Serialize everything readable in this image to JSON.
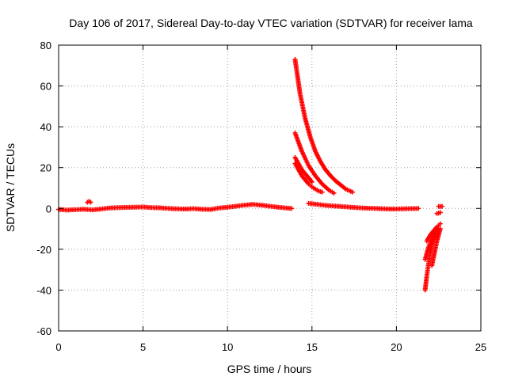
{
  "chart_data": {
    "type": "scatter",
    "title": "Day 106 of 2017, Sidereal Day-to-day VTEC variation (SDTVAR) for receiver lama",
    "xlabel": "GPS time / hours",
    "ylabel": "SDTVAR / TECUs",
    "xlim": [
      0,
      25
    ],
    "ylim": [
      -60,
      80
    ],
    "xticks": [
      "0",
      "5",
      "10",
      "15",
      "20",
      "25"
    ],
    "yticks": [
      "-60",
      "-40",
      "-20",
      "0",
      "20",
      "40",
      "60",
      "80"
    ],
    "grid": true,
    "marker": "plus",
    "color": "#ff0000",
    "series": [
      {
        "segments": [
          {
            "x": [
              0.0,
              0.5,
              1.0,
              1.5,
              2.0,
              2.5,
              3.0,
              3.5,
              4.0,
              4.5,
              5.0,
              5.5,
              6.0,
              6.5,
              7.0,
              7.5,
              8.0,
              8.5,
              9.0,
              9.5,
              10.0,
              10.5,
              11.0,
              11.5,
              12.0,
              12.5,
              13.0,
              13.5,
              13.8
            ],
            "y": [
              -0.5,
              -0.8,
              -0.6,
              -0.4,
              -0.7,
              -0.3,
              0.2,
              0.4,
              0.5,
              0.6,
              0.7,
              0.4,
              0.3,
              0.0,
              -0.2,
              -0.3,
              -0.1,
              -0.4,
              -0.5,
              0.2,
              0.6,
              1.1,
              1.6,
              2.0,
              1.6,
              1.1,
              0.6,
              0.2,
              0.0
            ]
          },
          {
            "x": [
              1.7,
              1.8,
              1.9
            ],
            "y": [
              3.0,
              3.5,
              3.0
            ]
          },
          {
            "x": [
              14.0,
              14.3,
              14.6,
              14.9,
              15.2,
              15.5,
              15.8,
              16.1,
              16.4,
              16.7,
              17.0,
              17.4
            ],
            "y": [
              73,
              56,
              44,
              35,
              28,
              23,
              19,
              16,
              13.5,
              11.5,
              9.5,
              8.0
            ]
          },
          {
            "x": [
              14.0,
              14.4,
              14.8,
              15.2,
              15.6,
              16.0,
              16.3
            ],
            "y": [
              37,
              28,
              21,
              16,
              12,
              9,
              7.5
            ]
          },
          {
            "x": [
              14.0,
              14.2,
              14.4,
              14.6,
              14.8,
              15.0
            ],
            "y": [
              25,
              22,
              19,
              17,
              15,
              13
            ]
          },
          {
            "x": [
              14.0,
              14.2,
              14.4,
              14.6,
              14.8,
              15.0,
              15.2,
              15.4,
              15.6
            ],
            "y": [
              22,
              19,
              16,
              14,
              12,
              10.5,
              9.5,
              8.5,
              8.0
            ]
          },
          {
            "x": [
              14.8,
              15.3,
              15.8,
              16.3,
              16.8,
              17.3,
              17.8,
              18.3,
              18.8,
              19.3,
              19.8,
              20.3,
              20.8,
              21.3
            ],
            "y": [
              2.5,
              2.0,
              1.5,
              1.2,
              0.9,
              0.6,
              0.3,
              0.1,
              0.0,
              -0.2,
              -0.3,
              -0.2,
              -0.1,
              0.0
            ]
          },
          {
            "x": [
              21.7,
              21.8,
              21.9,
              22.0,
              22.1,
              22.2,
              22.4
            ],
            "y": [
              -40,
              -33,
              -27,
              -22,
              -18,
              -15,
              -12
            ]
          },
          {
            "x": [
              21.7,
              21.9,
              22.1,
              22.3,
              22.5
            ],
            "y": [
              -25,
              -19,
              -15,
              -12,
              -10
            ]
          },
          {
            "x": [
              21.8,
              22.0,
              22.2,
              22.4,
              22.6
            ],
            "y": [
              -16,
              -13,
              -11,
              -9,
              -7.5
            ]
          },
          {
            "x": [
              22.1,
              22.2,
              22.3,
              22.4,
              22.5,
              22.6
            ],
            "y": [
              -28,
              -24,
              -20,
              -16,
              -13,
              -10
            ]
          },
          {
            "x": [
              22.5,
              22.7
            ],
            "y": [
              1.0,
              1.0
            ]
          },
          {
            "x": [
              22.4,
              22.6
            ],
            "y": [
              -2.5,
              -2.0
            ]
          }
        ]
      }
    ]
  }
}
